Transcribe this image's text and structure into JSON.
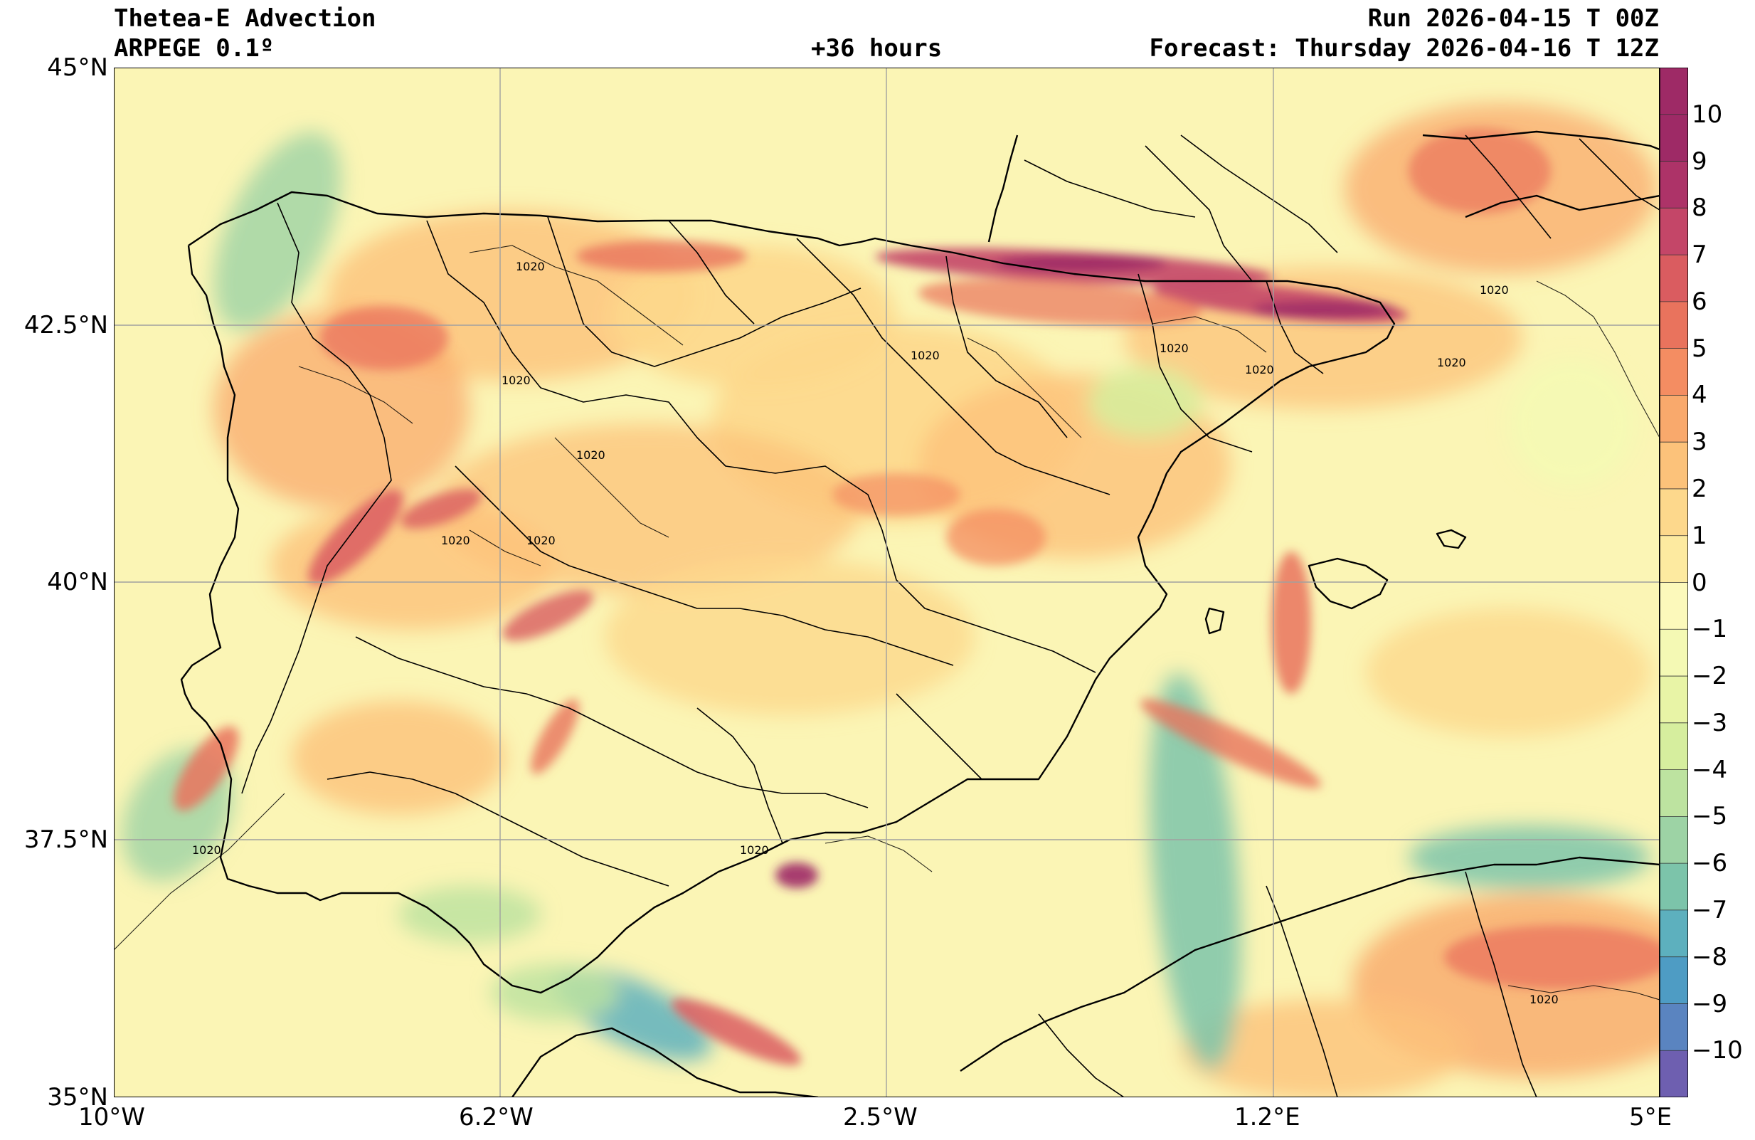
{
  "header": {
    "title": "Thetea-E Advection",
    "model": "ARPEGE 0.1º",
    "lead": "+36 hours",
    "run": "Run 2026-04-15 T 00Z",
    "forecast": "Forecast: Thursday 2026-04-16 T 12Z"
  },
  "axes": {
    "lat_labels": [
      "45°N",
      "42.5°N",
      "40°N",
      "37.5°N",
      "35°N"
    ],
    "lon_labels": [
      "10°W",
      "6.2°W",
      "2.5°W",
      "1.2°E",
      "5°E"
    ],
    "lat_values": [
      45,
      42.5,
      40,
      37.5,
      35
    ],
    "lon_values": [
      -10,
      -6.25,
      -2.5,
      1.25,
      5
    ]
  },
  "map": {
    "extent": {
      "lon_min": -10,
      "lon_max": 5,
      "lat_min": 35,
      "lat_max": 45
    },
    "isobar_label": "1020",
    "background_color": "#fbf5b5",
    "grid": true
  },
  "colorbar": {
    "ticks": [
      "10",
      "9",
      "8",
      "7",
      "6",
      "5",
      "4",
      "3",
      "2",
      "1",
      "0",
      "−1",
      "−2",
      "−3",
      "−4",
      "−5",
      "−6",
      "−7",
      "−8",
      "−9",
      "−10"
    ],
    "colors": {
      "neg11": "#6e5fb0",
      "neg10": "#5a84c0",
      "neg9": "#4e9cc4",
      "neg8": "#5db0be",
      "neg7": "#7cc4aa",
      "neg6": "#9dd3a5",
      "neg5": "#bde3a0",
      "neg4": "#d6ee9e",
      "neg3": "#e8f4a6",
      "neg2": "#f4f9b4",
      "neg1": "#fcf9bb",
      "pos0": "#fdeaa0",
      "pos1": "#fdd88c",
      "pos2": "#fcc27a",
      "pos3": "#f9a96c",
      "pos4": "#f48d62",
      "pos5": "#e9735d",
      "pos6": "#da5c60",
      "pos7": "#c44668",
      "pos8": "#ad3368",
      "pos9": "#9e2a66"
    }
  }
}
